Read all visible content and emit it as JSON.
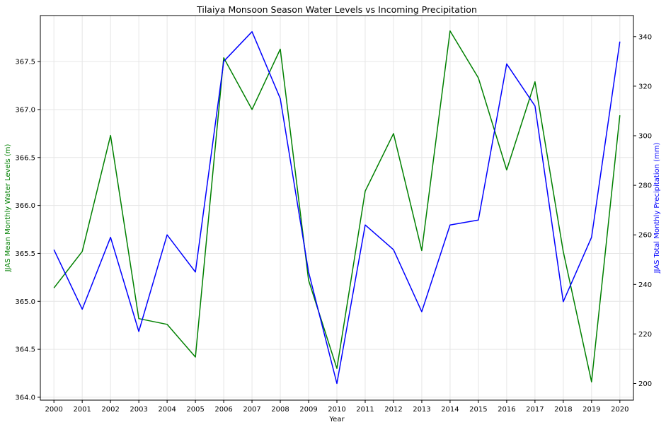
{
  "chart_data": {
    "type": "line",
    "title": "Tilaiya Monsoon Season Water Levels vs Incoming Precipitation",
    "xlabel": "Year",
    "ylabel_left": "JJAS Mean Monthly Water Levels (m)",
    "ylabel_right": "JJAS Total Monthly Precipitation (mm)",
    "x": [
      2000,
      2001,
      2002,
      2003,
      2004,
      2005,
      2006,
      2007,
      2008,
      2009,
      2010,
      2011,
      2012,
      2013,
      2014,
      2015,
      2016,
      2017,
      2018,
      2019,
      2020
    ],
    "y_left_ticks": [
      364.0,
      364.5,
      365.0,
      365.5,
      366.0,
      366.5,
      367.0,
      367.5
    ],
    "y_left_tick_labels": [
      "364.0",
      "364.5",
      "365.0",
      "365.5",
      "366.0",
      "366.5",
      "367.0",
      "367.5"
    ],
    "y_right_ticks": [
      200,
      220,
      240,
      260,
      280,
      300,
      320,
      340
    ],
    "y_left_lim": [
      363.97,
      367.98
    ],
    "y_right_lim": [
      193.3,
      348.5
    ],
    "grid": true,
    "series": [
      {
        "axis": "left",
        "color": "#008000",
        "values": [
          365.14,
          365.52,
          366.73,
          364.82,
          364.76,
          364.42,
          367.54,
          367.0,
          367.63,
          365.22,
          364.3,
          366.15,
          366.75,
          365.53,
          367.82,
          367.33,
          366.37,
          367.29,
          365.52,
          364.16,
          366.94
        ]
      },
      {
        "axis": "right",
        "color": "#0000ff",
        "values": [
          254,
          230,
          259,
          221,
          260,
          245,
          330,
          342,
          315,
          245,
          200,
          264,
          254,
          229,
          264,
          266,
          329,
          312,
          233,
          259,
          338
        ]
      }
    ]
  }
}
